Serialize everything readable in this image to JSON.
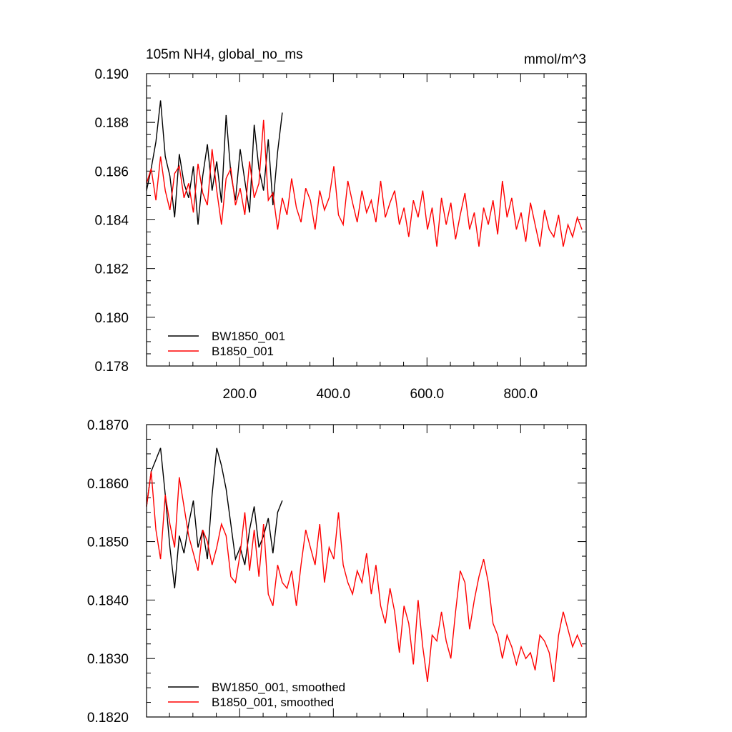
{
  "colors": {
    "BW1850_001": "#000000",
    "B1850_001": "#ff0000"
  },
  "chart_data": [
    {
      "type": "line",
      "title_left": "105m NH4, global_no_ms",
      "title_right": "mmol/m^3",
      "xlim": [
        1,
        940
      ],
      "ylim": [
        0.178,
        0.19
      ],
      "x_ticks": [
        200,
        400,
        600,
        800
      ],
      "x_tick_labels": [
        "200.0",
        "400.0",
        "600.0",
        "800.0"
      ],
      "y_ticks": [
        0.178,
        0.18,
        0.182,
        0.184,
        0.186,
        0.188,
        0.19
      ],
      "y_tick_labels": [
        "0.178",
        "0.180",
        "0.182",
        "0.184",
        "0.186",
        "0.188",
        "0.190"
      ],
      "legend_position": "bottom-left",
      "series": [
        {
          "name": "BW1850_001",
          "color": "#000000",
          "x_start": 1,
          "x_step": 10,
          "values": [
            0.1852,
            0.1861,
            0.1872,
            0.1889,
            0.1866,
            0.1858,
            0.1841,
            0.1867,
            0.1855,
            0.1849,
            0.1862,
            0.1838,
            0.1858,
            0.1871,
            0.1852,
            0.1864,
            0.1847,
            0.1883,
            0.1859,
            0.1848,
            0.1869,
            0.1856,
            0.1843,
            0.1879,
            0.1861,
            0.1852,
            0.1873,
            0.1846,
            0.1868,
            0.1884
          ]
        },
        {
          "name": "B1850_001",
          "color": "#ff0000",
          "x_start": 1,
          "x_step": 10,
          "values": [
            0.1855,
            0.1861,
            0.1848,
            0.1866,
            0.1852,
            0.1844,
            0.1859,
            0.1862,
            0.1849,
            0.1855,
            0.1843,
            0.1863,
            0.1851,
            0.1846,
            0.1869,
            0.1852,
            0.1838,
            0.1857,
            0.1861,
            0.1846,
            0.1853,
            0.1842,
            0.1864,
            0.1849,
            0.1855,
            0.1881,
            0.1848,
            0.1851,
            0.1836,
            0.1849,
            0.1842,
            0.1857,
            0.1845,
            0.1839,
            0.1853,
            0.1848,
            0.1836,
            0.1852,
            0.1844,
            0.1849,
            0.1862,
            0.1842,
            0.1838,
            0.1856,
            0.1847,
            0.1839,
            0.1852,
            0.1843,
            0.1848,
            0.1839,
            0.1856,
            0.1841,
            0.1847,
            0.1852,
            0.1838,
            0.1845,
            0.1833,
            0.1848,
            0.1841,
            0.1852,
            0.1836,
            0.1845,
            0.1829,
            0.1849,
            0.1838,
            0.1847,
            0.1832,
            0.1842,
            0.1851,
            0.1836,
            0.1843,
            0.1829,
            0.1845,
            0.1838,
            0.1848,
            0.1834,
            0.1856,
            0.1841,
            0.1849,
            0.1836,
            0.1843,
            0.1831,
            0.1847,
            0.1838,
            0.1829,
            0.1844,
            0.1836,
            0.1833,
            0.1842,
            0.1829,
            0.1838,
            0.1833,
            0.1841,
            0.1836
          ]
        }
      ],
      "legend": [
        {
          "label": "BW1850_001",
          "color": "#000000"
        },
        {
          "label": "B1850_001",
          "color": "#ff0000"
        }
      ]
    },
    {
      "type": "line",
      "xlim": [
        1,
        940
      ],
      "ylim": [
        0.182,
        0.187
      ],
      "x_ticks": [
        200,
        400,
        600,
        800
      ],
      "y_ticks": [
        0.182,
        0.183,
        0.184,
        0.185,
        0.186,
        0.187
      ],
      "y_tick_labels": [
        "0.1820",
        "0.1830",
        "0.1840",
        "0.1850",
        "0.1860",
        "0.1870"
      ],
      "legend_position": "bottom-left",
      "series": [
        {
          "name": "BW1850_001, smoothed",
          "color": "#000000",
          "x_start": 1,
          "x_step": 10,
          "values": [
            0.1856,
            0.1862,
            0.1864,
            0.1866,
            0.1858,
            0.1849,
            0.1842,
            0.1851,
            0.1848,
            0.1853,
            0.1857,
            0.1849,
            0.1852,
            0.1847,
            0.1858,
            0.1866,
            0.1863,
            0.1859,
            0.1853,
            0.1847,
            0.1849,
            0.1846,
            0.1852,
            0.1856,
            0.1849,
            0.1851,
            0.1854,
            0.1848,
            0.1855,
            0.1857
          ]
        },
        {
          "name": "B1850_001, smoothed",
          "color": "#ff0000",
          "x_start": 1,
          "x_step": 10,
          "values": [
            0.1856,
            0.1862,
            0.1852,
            0.1847,
            0.1858,
            0.1853,
            0.1849,
            0.1861,
            0.1856,
            0.1851,
            0.1848,
            0.1845,
            0.1852,
            0.185,
            0.1846,
            0.1849,
            0.1853,
            0.1851,
            0.1844,
            0.1843,
            0.1848,
            0.1855,
            0.1845,
            0.1852,
            0.1844,
            0.1853,
            0.1841,
            0.1839,
            0.1846,
            0.1843,
            0.1842,
            0.1845,
            0.1839,
            0.1846,
            0.1852,
            0.1849,
            0.1846,
            0.1853,
            0.1843,
            0.1849,
            0.1847,
            0.1855,
            0.1846,
            0.1843,
            0.1841,
            0.1845,
            0.1843,
            0.1848,
            0.1841,
            0.1846,
            0.1839,
            0.1836,
            0.1842,
            0.1838,
            0.1831,
            0.1839,
            0.1836,
            0.1829,
            0.184,
            0.1832,
            0.1826,
            0.1834,
            0.1833,
            0.1838,
            0.1833,
            0.183,
            0.1838,
            0.1845,
            0.1843,
            0.1835,
            0.184,
            0.1844,
            0.1847,
            0.1843,
            0.1836,
            0.1834,
            0.183,
            0.1834,
            0.1832,
            0.1829,
            0.1832,
            0.183,
            0.1831,
            0.1828,
            0.1834,
            0.1833,
            0.1831,
            0.1826,
            0.1834,
            0.1838,
            0.1835,
            0.1832,
            0.1834,
            0.1832
          ]
        }
      ],
      "legend": [
        {
          "label": "BW1850_001, smoothed",
          "color": "#000000"
        },
        {
          "label": "B1850_001, smoothed",
          "color": "#ff0000"
        }
      ]
    }
  ]
}
